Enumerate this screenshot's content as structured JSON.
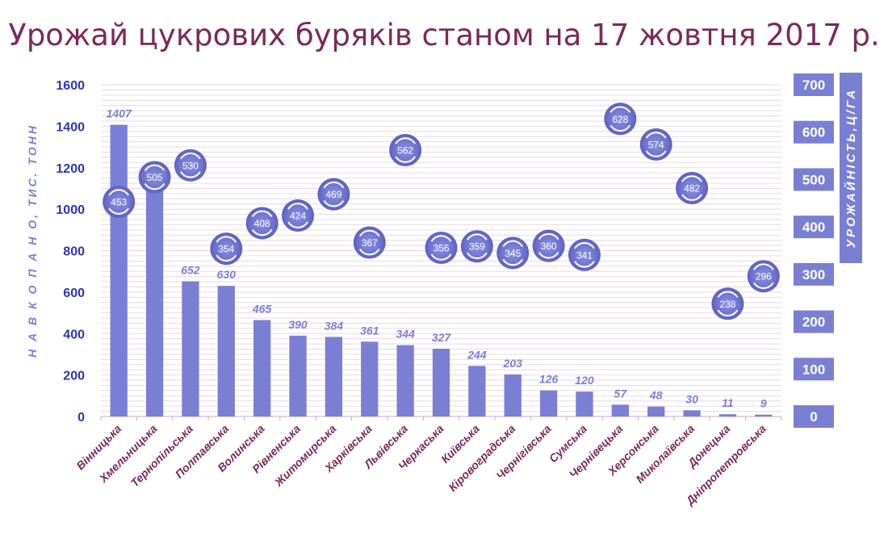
{
  "chart_data": {
    "type": "bar",
    "title": "Урожай цукрових буряків станом на 17 жовтня 2017 р.",
    "ylabel": "Н А В К О П А Н О, ТИС. ТОНН",
    "ylabel_right": "УРОЖАЙНІСТЬ,Ц/ГА",
    "ylim": [
      0,
      1600
    ],
    "y_ticks": [
      0,
      200,
      400,
      600,
      800,
      1000,
      1200,
      1400,
      1600
    ],
    "y2lim": [
      0,
      700
    ],
    "y2_ticks": [
      0,
      100,
      200,
      300,
      400,
      500,
      600,
      700
    ],
    "grid": true,
    "categories": [
      "Вінницька",
      "Хмельницька",
      "Тернопільська",
      "Полтавська",
      "Волинська",
      "Рівненська",
      "Житомирська",
      "Харківська",
      "Львівська",
      "Черкаська",
      "Київська",
      "Кіровоградська",
      "Чернігівська",
      "Сумська",
      "Чернівецька",
      "Херсонська",
      "Миколаївська",
      "Донецька",
      "Дніпропетровська"
    ],
    "series": [
      {
        "type": "bar",
        "axis": "left",
        "color": "#7b7fd4",
        "values": [
          1407,
          1116,
          652,
          630,
          465,
          390,
          384,
          361,
          344,
          327,
          244,
          203,
          126,
          120,
          57,
          48,
          30,
          11,
          9
        ]
      },
      {
        "type": "scatter",
        "axis": "right",
        "color": "#7b7fd4",
        "values": [
          453,
          505,
          530,
          354,
          408,
          424,
          469,
          367,
          562,
          356,
          359,
          345,
          360,
          341,
          628,
          574,
          482,
          238,
          296
        ]
      }
    ]
  }
}
